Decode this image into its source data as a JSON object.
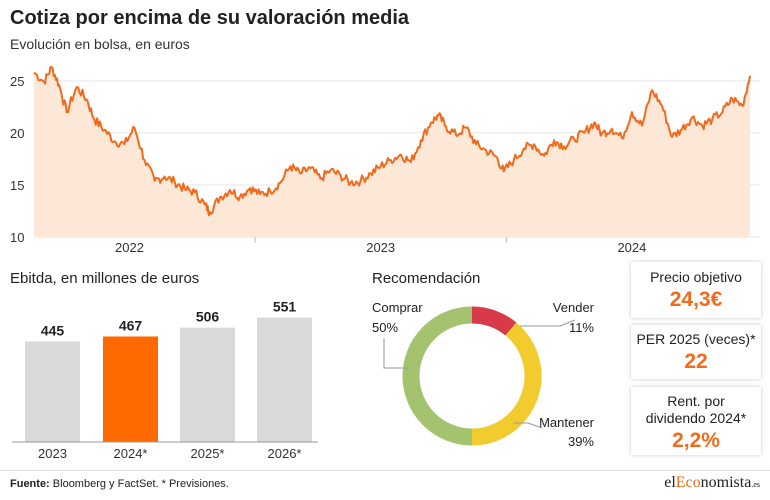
{
  "header": {
    "title": "Cotiza por encima de su valoración media",
    "subtitle": "Evolución en bolsa, en euros"
  },
  "chart_data": [
    {
      "type": "area",
      "name": "price",
      "x_ticks": [
        "2022",
        "2023",
        "2024"
      ],
      "ylim": [
        10,
        27
      ],
      "y_ticks": [
        10,
        15,
        20,
        25
      ],
      "grid": true,
      "colors": {
        "line": "#f26a1b",
        "fill": "#fde8d8"
      },
      "points": [
        [
          2021.62,
          25.8
        ],
        [
          2021.66,
          24.9
        ],
        [
          2021.69,
          26.3
        ],
        [
          2021.72,
          24.6
        ],
        [
          2021.75,
          22.0
        ],
        [
          2021.79,
          24.4
        ],
        [
          2021.83,
          23.2
        ],
        [
          2021.86,
          21.3
        ],
        [
          2021.9,
          20.3
        ],
        [
          2021.94,
          19.2
        ],
        [
          2021.98,
          18.9
        ],
        [
          2022.02,
          20.5
        ],
        [
          2022.06,
          17.4
        ],
        [
          2022.1,
          15.4
        ],
        [
          2022.14,
          15.8
        ],
        [
          2022.18,
          15.3
        ],
        [
          2022.22,
          14.6
        ],
        [
          2022.26,
          14.3
        ],
        [
          2022.3,
          13.1
        ],
        [
          2022.32,
          12.4
        ],
        [
          2022.36,
          13.8
        ],
        [
          2022.4,
          14.5
        ],
        [
          2022.44,
          13.9
        ],
        [
          2022.48,
          14.7
        ],
        [
          2022.52,
          14.1
        ],
        [
          2022.56,
          14.4
        ],
        [
          2022.6,
          15.2
        ],
        [
          2022.64,
          16.8
        ],
        [
          2022.68,
          16.1
        ],
        [
          2022.72,
          16.6
        ],
        [
          2022.76,
          15.6
        ],
        [
          2022.8,
          16.4
        ],
        [
          2022.84,
          15.9
        ],
        [
          2022.88,
          15.2
        ],
        [
          2022.92,
          15.4
        ],
        [
          2022.96,
          16.1
        ],
        [
          2023.0,
          16.8
        ],
        [
          2023.04,
          17.4
        ],
        [
          2023.08,
          17.9
        ],
        [
          2023.12,
          17.2
        ],
        [
          2023.16,
          19.3
        ],
        [
          2023.2,
          21.0
        ],
        [
          2023.23,
          21.7
        ],
        [
          2023.26,
          20.6
        ],
        [
          2023.3,
          19.8
        ],
        [
          2023.34,
          20.5
        ],
        [
          2023.38,
          18.9
        ],
        [
          2023.42,
          18.3
        ],
        [
          2023.46,
          17.7
        ],
        [
          2023.49,
          16.3
        ],
        [
          2023.53,
          17.4
        ],
        [
          2023.57,
          18.5
        ],
        [
          2023.61,
          18.9
        ],
        [
          2023.65,
          17.8
        ],
        [
          2023.69,
          19.3
        ],
        [
          2023.73,
          18.7
        ],
        [
          2023.77,
          19.4
        ],
        [
          2023.81,
          20.0
        ],
        [
          2023.85,
          21.0
        ],
        [
          2023.88,
          19.9
        ],
        [
          2023.92,
          20.4
        ],
        [
          2023.96,
          19.5
        ],
        [
          2024.0,
          22.0
        ],
        [
          2024.04,
          20.7
        ],
        [
          2024.08,
          24.1
        ],
        [
          2024.12,
          22.6
        ],
        [
          2024.16,
          19.6
        ],
        [
          2024.2,
          20.4
        ],
        [
          2024.24,
          21.5
        ],
        [
          2024.28,
          20.7
        ],
        [
          2024.32,
          21.3
        ],
        [
          2024.36,
          22.0
        ],
        [
          2024.4,
          23.3
        ],
        [
          2024.44,
          22.6
        ],
        [
          2024.47,
          25.5
        ]
      ]
    },
    {
      "type": "bar",
      "name": "ebitda",
      "title": "Ebitda, en millones de euros",
      "categories": [
        "2023",
        "2024*",
        "2025*",
        "2026*"
      ],
      "values": [
        445,
        467,
        506,
        551
      ],
      "highlight_index": 1,
      "colors": {
        "bar": "#d9d9d9",
        "highlight": "#ff6a00"
      }
    },
    {
      "type": "pie",
      "name": "recomendacion",
      "title": "Recomendación",
      "slices": [
        {
          "label": "Vender",
          "value": 11,
          "value_label": "11%",
          "color": "#d93a4a"
        },
        {
          "label": "Mantener",
          "value": 39,
          "value_label": "39%",
          "color": "#f2cc2f"
        },
        {
          "label": "Comprar",
          "value": 50,
          "value_label": "50%",
          "color": "#a3c36e"
        }
      ]
    }
  ],
  "cards": [
    {
      "label": "Precio objetivo",
      "value": "24,3€"
    },
    {
      "label": "PER 2025 (veces)*",
      "value": "22"
    },
    {
      "label": "Rent. por dividendo 2024*",
      "value": "2,2%"
    }
  ],
  "footer": {
    "source_label": "Fuente:",
    "source_text": " Bloomberg y FactSet. * Previsiones.",
    "logo_pre": "el",
    "logo_mid": "Eco",
    "logo_post": "nomista",
    "logo_suffix": ".es"
  }
}
